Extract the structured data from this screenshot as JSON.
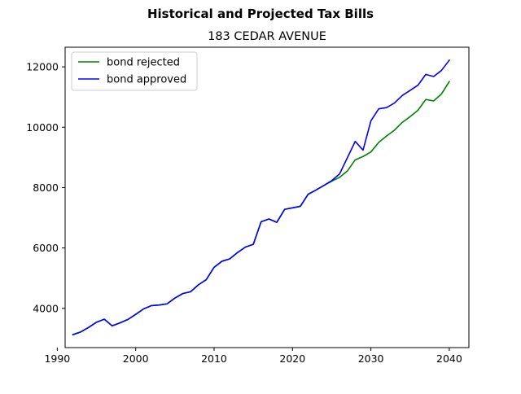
{
  "chart_data": {
    "type": "line",
    "suptitle": "Historical and Projected Tax Bills",
    "title": "183 CEDAR AVENUE",
    "xlabel": "",
    "ylabel": "",
    "xlim": [
      1991,
      2042.5
    ],
    "ylim": [
      2700,
      12650
    ],
    "xticks": [
      1990,
      2000,
      2010,
      2020,
      2030,
      2040
    ],
    "yticks": [
      4000,
      6000,
      8000,
      10000,
      12000
    ],
    "grid": false,
    "legend_position": "top-left",
    "series": [
      {
        "name": "bond rejected",
        "color": "#008000",
        "x": [
          1992,
          1993,
          1994,
          1995,
          1996,
          1997,
          1998,
          1999,
          2000,
          2001,
          2002,
          2003,
          2004,
          2005,
          2006,
          2007,
          2008,
          2009,
          2010,
          2011,
          2012,
          2013,
          2014,
          2015,
          2016,
          2017,
          2018,
          2019,
          2020,
          2021,
          2022,
          2023,
          2024,
          2025,
          2026,
          2027,
          2028,
          2029,
          2030,
          2031,
          2032,
          2033,
          2034,
          2035,
          2036,
          2037,
          2038,
          2039,
          2040
        ],
        "values": [
          3130,
          3220,
          3370,
          3540,
          3640,
          3420,
          3520,
          3630,
          3800,
          3980,
          4090,
          4110,
          4150,
          4340,
          4490,
          4550,
          4780,
          4950,
          5360,
          5560,
          5640,
          5850,
          6030,
          6120,
          6870,
          6960,
          6850,
          7280,
          7330,
          7380,
          7780,
          7920,
          8070,
          8210,
          8340,
          8550,
          8920,
          9030,
          9180,
          9500,
          9710,
          9900,
          10160,
          10350,
          10560,
          10920,
          10870,
          11100,
          11510
        ]
      },
      {
        "name": "bond approved",
        "color": "#0000ff",
        "x": [
          1992,
          1993,
          1994,
          1995,
          1996,
          1997,
          1998,
          1999,
          2000,
          2001,
          2002,
          2003,
          2004,
          2005,
          2006,
          2007,
          2008,
          2009,
          2010,
          2011,
          2012,
          2013,
          2014,
          2015,
          2016,
          2017,
          2018,
          2019,
          2020,
          2021,
          2022,
          2023,
          2024,
          2025,
          2026,
          2027,
          2028,
          2029,
          2030,
          2031,
          2032,
          2033,
          2034,
          2035,
          2036,
          2037,
          2038,
          2039,
          2040
        ],
        "values": [
          3130,
          3220,
          3370,
          3540,
          3640,
          3420,
          3520,
          3630,
          3800,
          3980,
          4090,
          4110,
          4150,
          4340,
          4490,
          4550,
          4780,
          4950,
          5360,
          5560,
          5640,
          5850,
          6030,
          6120,
          6870,
          6960,
          6850,
          7280,
          7330,
          7380,
          7780,
          7920,
          8070,
          8230,
          8450,
          8990,
          9530,
          9240,
          10210,
          10610,
          10650,
          10800,
          11050,
          11220,
          11390,
          11750,
          11680,
          11880,
          12220
        ]
      }
    ]
  }
}
